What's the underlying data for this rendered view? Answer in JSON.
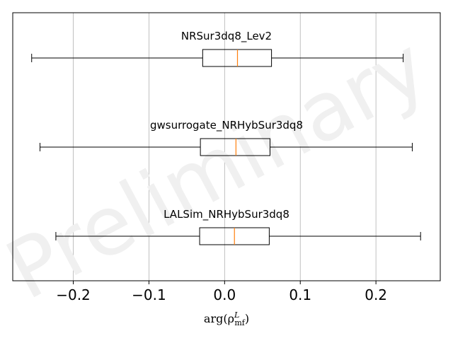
{
  "chart_data": {
    "type": "boxplot",
    "orientation": "horizontal",
    "grid": "vertical",
    "watermark": "Preliminary",
    "xlabel": "arg(ρ",
    "xlabel_sup": "L",
    "xlabel_sub": "mf",
    "xlabel_close": ")",
    "xlim": [
      -0.28,
      0.285
    ],
    "xticks": [
      -0.2,
      -0.1,
      0.0,
      0.1,
      0.2
    ],
    "xtick_labels": [
      "−0.2",
      "−0.1",
      "0.0",
      "0.1",
      "0.2"
    ],
    "colors": {
      "box": "#000000",
      "median": "#ff7f0e",
      "grid": "#b0b0b0",
      "watermark": "#f0f0f0"
    },
    "series": [
      {
        "label": "NRSur3dq8_Lev2",
        "whisker_low": -0.255,
        "q1": -0.029,
        "median": 0.017,
        "q3": 0.062,
        "whisker_high": 0.236
      },
      {
        "label": "gwsurrogate_NRHybSur3dq8",
        "whisker_low": -0.244,
        "q1": -0.032,
        "median": 0.015,
        "q3": 0.06,
        "whisker_high": 0.248
      },
      {
        "label": "LALSim_NRHybSur3dq8",
        "whisker_low": -0.223,
        "q1": -0.033,
        "median": 0.013,
        "q3": 0.059,
        "whisker_high": 0.259
      }
    ]
  }
}
